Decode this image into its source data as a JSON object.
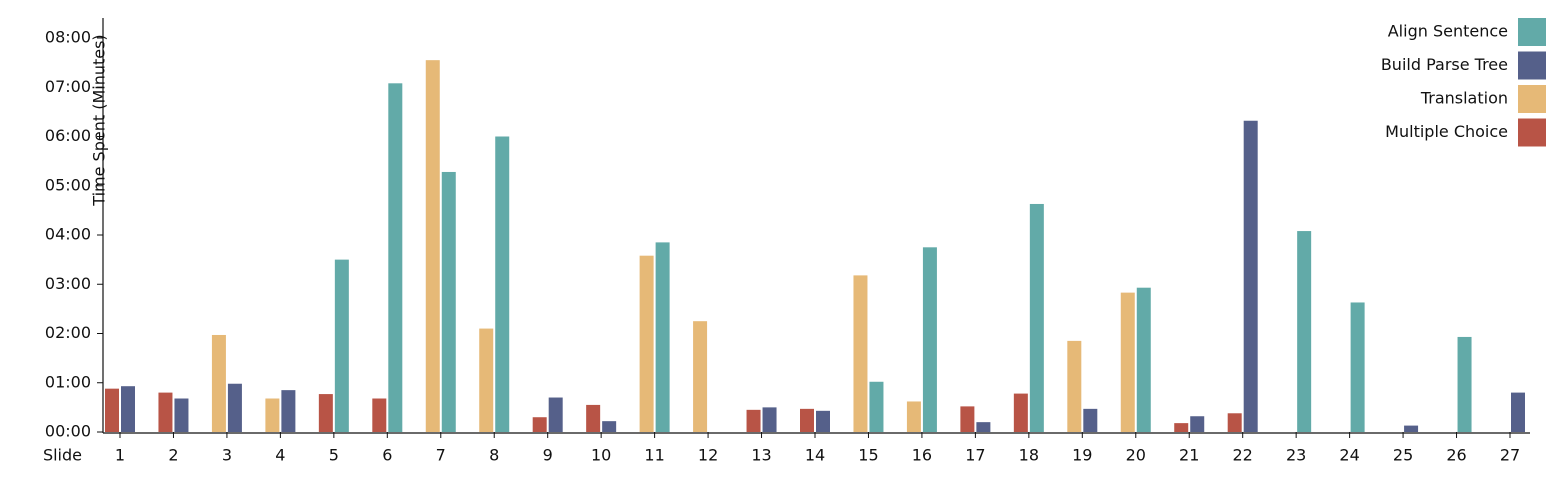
{
  "chart_data": {
    "type": "bar",
    "y_label": "Time Spent (Minutes)",
    "x_label": "Slide",
    "categories": [
      "1",
      "2",
      "3",
      "4",
      "5",
      "6",
      "7",
      "8",
      "9",
      "10",
      "11",
      "12",
      "13",
      "14",
      "15",
      "16",
      "17",
      "18",
      "19",
      "20",
      "21",
      "22",
      "23",
      "24",
      "25",
      "26",
      "27"
    ],
    "series": [
      {
        "name": "Align Sentence",
        "color": "#62aaa8",
        "values": [
          null,
          null,
          null,
          null,
          3.5,
          7.08,
          5.28,
          6.0,
          null,
          null,
          3.85,
          null,
          null,
          null,
          1.02,
          3.75,
          null,
          4.63,
          null,
          2.93,
          null,
          null,
          4.08,
          2.63,
          null,
          1.93,
          null
        ]
      },
      {
        "name": "Build Parse Tree",
        "color": "#55608a",
        "values": [
          0.93,
          0.68,
          0.98,
          0.85,
          null,
          null,
          null,
          null,
          0.7,
          0.22,
          null,
          null,
          0.5,
          0.43,
          null,
          null,
          0.2,
          null,
          0.47,
          null,
          0.32,
          6.32,
          null,
          null,
          0.13,
          null,
          0.8
        ]
      },
      {
        "name": "Translation",
        "color": "#e6b977",
        "values": [
          null,
          null,
          1.97,
          0.68,
          null,
          null,
          7.55,
          2.1,
          null,
          null,
          3.58,
          2.25,
          null,
          null,
          3.18,
          0.62,
          null,
          null,
          1.85,
          2.83,
          null,
          null,
          null,
          null,
          null,
          null,
          null
        ]
      },
      {
        "name": "Multiple Choice",
        "color": "#b85446",
        "values": [
          0.88,
          0.8,
          null,
          null,
          0.77,
          0.68,
          null,
          null,
          0.3,
          0.55,
          null,
          null,
          0.45,
          0.47,
          null,
          null,
          0.52,
          0.78,
          null,
          null,
          0.18,
          0.38,
          null,
          null,
          null,
          null,
          null
        ]
      }
    ],
    "ylim": [
      0,
      8
    ],
    "yticks": [
      {
        "value": 0,
        "label": "00:00"
      },
      {
        "value": 1,
        "label": "01:00"
      },
      {
        "value": 2,
        "label": "02:00"
      },
      {
        "value": 3,
        "label": "03:00"
      },
      {
        "value": 4,
        "label": "04:00"
      },
      {
        "value": 5,
        "label": "05:00"
      },
      {
        "value": 6,
        "label": "06:00"
      },
      {
        "value": 7,
        "label": "07:00"
      },
      {
        "value": 8,
        "label": "08:00"
      }
    ],
    "legend": "top-right"
  }
}
